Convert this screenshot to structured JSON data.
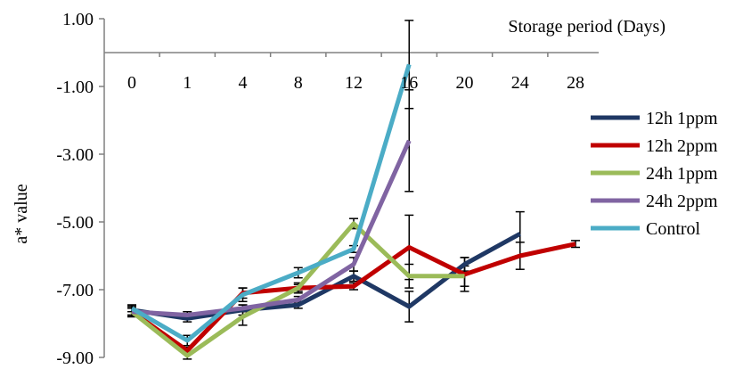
{
  "chart_data": {
    "type": "line",
    "title": "",
    "xlabel": "Storage period (Days)",
    "ylabel": "a* value",
    "categories": [
      "0",
      "1",
      "4",
      "8",
      "12",
      "16",
      "20",
      "24",
      "28"
    ],
    "ytick_labels": [
      "1.00",
      "-1.00",
      "-3.00",
      "-5.00",
      "-7.00",
      "-9.00"
    ],
    "ylim": [
      -9,
      1
    ],
    "legend_position": "right",
    "grid": false,
    "series": [
      {
        "name": "12h 1ppm",
        "color": "#1f3864",
        "values": [
          -7.6,
          -7.85,
          -7.6,
          -7.45,
          -6.6,
          -7.5,
          -6.25,
          -5.35,
          null
        ],
        "errors": [
          0.15,
          0.1,
          0.15,
          0.1,
          0.15,
          0.45,
          0.2,
          0.65,
          null
        ]
      },
      {
        "name": "12h 2ppm",
        "color": "#c00000",
        "values": [
          -7.65,
          -8.8,
          -7.1,
          -6.95,
          -6.9,
          -5.75,
          -6.55,
          -6.0,
          -5.65
        ],
        "errors": [
          0.15,
          0.1,
          0.15,
          0.1,
          0.1,
          0.95,
          0.5,
          0.4,
          0.1
        ]
      },
      {
        "name": "24h 1ppm",
        "color": "#9bbb59",
        "values": [
          -7.65,
          -8.95,
          -7.8,
          -6.95,
          -5.05,
          -6.6,
          -6.6,
          null,
          null
        ],
        "errors": [
          0.15,
          0.1,
          0.25,
          0.15,
          0.15,
          0.35,
          0.3,
          null,
          null
        ]
      },
      {
        "name": "24h 2ppm",
        "color": "#8064a2",
        "values": [
          -7.65,
          -7.75,
          -7.55,
          -7.3,
          -6.25,
          -2.6,
          null,
          null,
          null
        ],
        "errors": [
          0.1,
          0.1,
          0.1,
          0.1,
          0.2,
          1.5,
          null,
          null,
          null
        ]
      },
      {
        "name": "Control",
        "color": "#4bacc6",
        "values": [
          -7.55,
          -8.5,
          -7.15,
          -6.5,
          -5.8,
          -0.35,
          null,
          null,
          null
        ],
        "errors": [
          0.1,
          0.15,
          0.2,
          0.15,
          0.1,
          1.3,
          null,
          null,
          null
        ]
      }
    ]
  }
}
